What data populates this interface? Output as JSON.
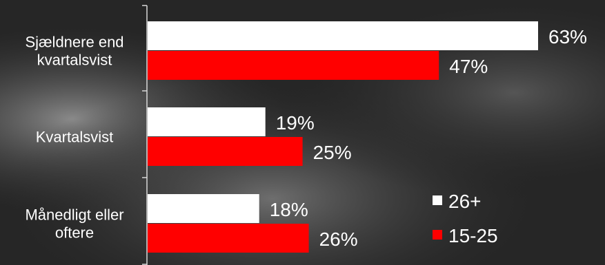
{
  "chart_data": {
    "type": "bar",
    "orientation": "horizontal",
    "categories": [
      "Sjældnere end kvartalsvist",
      "Kvartalsvist",
      "Månedligt eller oftere"
    ],
    "category_lines": [
      [
        "Sjældnere end",
        "kvartalsvist"
      ],
      [
        "Kvartalsvist"
      ],
      [
        "Månedligt eller",
        "oftere"
      ]
    ],
    "series": [
      {
        "name": "26+",
        "color": "#ffffff",
        "values": [
          63,
          19,
          18
        ],
        "labels": [
          "63%",
          "19%",
          "18%"
        ]
      },
      {
        "name": "15-25",
        "color": "#ff0000",
        "values": [
          47,
          25,
          26
        ],
        "labels": [
          "47%",
          "25%",
          "26%"
        ]
      }
    ],
    "xlim": [
      0,
      63
    ],
    "legend_position": "bottom-right",
    "grid": false,
    "background": "dark photographic (grayscale)"
  }
}
